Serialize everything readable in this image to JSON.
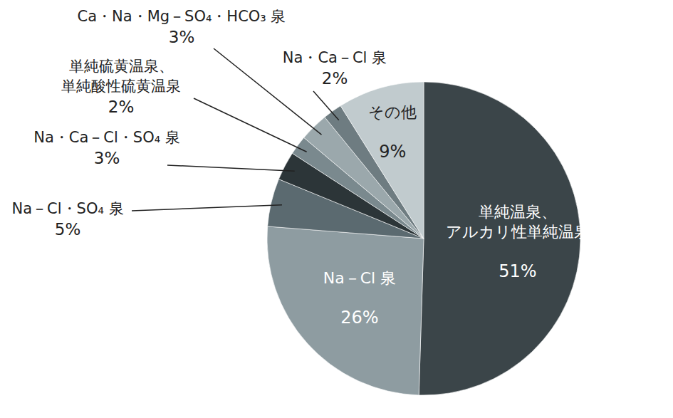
{
  "chart_data": {
    "type": "pie",
    "categories": [
      "単純温泉、アルカリ性単純温泉",
      "Na－Cl 泉",
      "Na－Cl・SO₄ 泉",
      "Na・Ca－Cl・SO₄ 泉",
      "単純硫黄温泉、単純酸性硫黄温泉",
      "Ca・Na・Mg－SO₄・HCO₃ 泉",
      "Na・Ca－Cl 泉",
      "その他"
    ],
    "values": [
      51,
      26,
      5,
      3,
      2,
      3,
      2,
      9
    ],
    "value_labels": [
      "51%",
      "26%",
      "5%",
      "3%",
      "2%",
      "3%",
      "2%",
      "9%"
    ],
    "colors": [
      "#3b4549",
      "#8e9ca1",
      "#5b6a70",
      "#2c3538",
      "#7a898e",
      "#9ba8ac",
      "#6e7c81",
      "#c1cbce"
    ],
    "data_labels": true
  }
}
